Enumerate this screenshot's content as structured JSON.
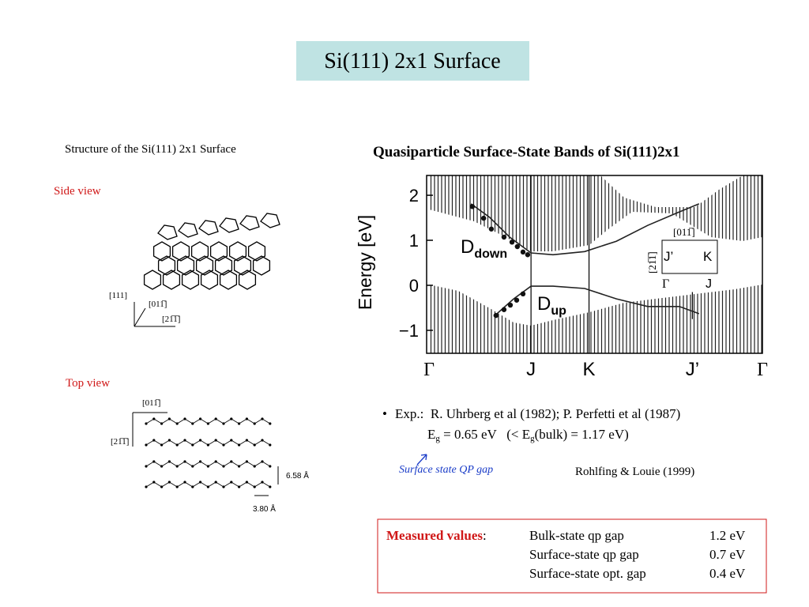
{
  "title": "Si(111) 2x1 Surface",
  "structure": {
    "title": "Structure of the Si(111) 2x1 Surface",
    "side_view": {
      "label": "Side view",
      "axes": [
        "[111]",
        "[011̅]",
        "[21̅1̅]"
      ]
    },
    "top_view": {
      "label": "Top view",
      "axes": [
        "[011̅]",
        "[21̅1̅]"
      ],
      "spacing_rows": "6.58 Å",
      "spacing_atoms": "3.80 Å"
    }
  },
  "chart_data": {
    "type": "line",
    "title": "Quasiparticle Surface-State Bands of Si(111)2x1",
    "y_label": "Energy [eV]",
    "xlim": [
      0,
      1
    ],
    "ylim": [
      -1.51,
      2.44
    ],
    "xticks": [
      {
        "value": 0,
        "label": "Γ"
      },
      {
        "value": 0.306,
        "label": "J"
      },
      {
        "value": 0.48,
        "label": "K"
      },
      {
        "value": 0.79,
        "label": "J’"
      },
      {
        "value": 1,
        "label": "Γ"
      }
    ],
    "yticks": [
      2,
      1,
      0,
      {
        "value": -1,
        "label": "−1"
      }
    ],
    "series": [
      {
        "style": "line",
        "color": "#222222",
        "x": [
          0.126,
          0.182,
          0.242,
          0.306,
          0.372,
          0.467,
          0.562,
          0.656,
          0.751,
          0.81
        ],
        "values": [
          1.81,
          1.51,
          1.07,
          0.72,
          0.68,
          0.75,
          0.98,
          1.33,
          1.63,
          1.81
        ]
      },
      {
        "style": "line",
        "color": "#222222",
        "x": [
          0.201,
          0.254,
          0.306,
          0.372,
          0.467,
          0.562,
          0.656,
          0.751,
          0.81
        ],
        "values": [
          -0.65,
          -0.3,
          -0.02,
          -0.02,
          -0.07,
          -0.3,
          -0.47,
          -0.47,
          -0.63
        ]
      },
      {
        "style": "dots",
        "color": "#111111",
        "x": [
          0.13,
          0.164,
          0.187,
          0.225,
          0.249,
          0.265,
          0.282,
          0.296
        ],
        "values": [
          1.75,
          1.49,
          1.25,
          1.07,
          0.96,
          0.86,
          0.74,
          0.68
        ]
      },
      {
        "style": "dots",
        "color": "#111111",
        "x": [
          0.201,
          0.225,
          0.244,
          0.263,
          0.282
        ],
        "values": [
          -0.67,
          -0.54,
          -0.44,
          -0.33,
          -0.19
        ]
      }
    ],
    "annotations": [
      {
        "text": "D",
        "sub": "down"
      },
      {
        "text": "D",
        "sub": "up"
      }
    ],
    "inset": {
      "top": "[011̅]",
      "left": "[21̅1̅]",
      "corners": [
        "J’",
        "K",
        "Γ",
        "J"
      ]
    }
  },
  "notes": {
    "bullet": "•",
    "exp": "Exp.:  R. Uhrberg et al (1982); P. Perfetti et al (1987)",
    "gap": [
      "E",
      "g",
      " = 0.65 eV   (< E",
      "g",
      "(bulk) = 1.17 eV)"
    ],
    "handwritten": "Surface state QP gap",
    "citation": "Rohlfing & Louie (1999)"
  },
  "measured": {
    "heading": "Measured values",
    "colon": ":",
    "rows": [
      [
        "Bulk-state qp gap",
        "1.2 eV"
      ],
      [
        "Surface-state qp gap",
        "0.7 eV"
      ],
      [
        "Surface-state opt. gap",
        "0.4 eV"
      ]
    ]
  }
}
